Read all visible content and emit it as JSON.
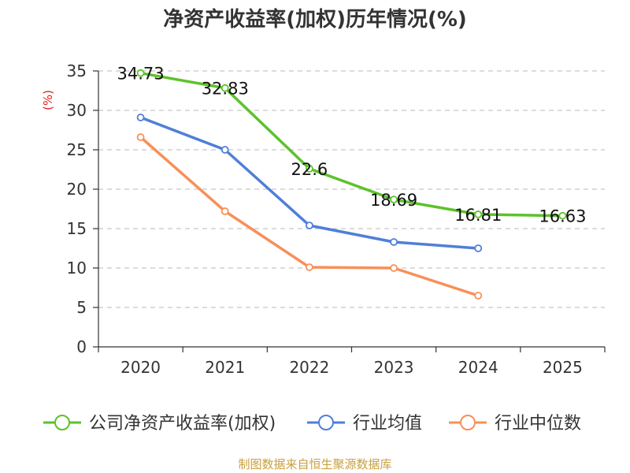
{
  "chart_data": {
    "type": "line",
    "title": "净资产收益率(加权)历年情况(%)",
    "ylabel": "(%)",
    "xlabel": "",
    "categories": [
      "2020",
      "2021",
      "2022",
      "2023",
      "2024",
      "2025"
    ],
    "ylim": [
      0,
      35
    ],
    "yticks": [
      0,
      5,
      10,
      15,
      20,
      25,
      30,
      35
    ],
    "grid": true,
    "legend_position": "bottom",
    "series": [
      {
        "name": "公司净资产收益率(加权)",
        "color": "#5cc22b",
        "values": [
          34.73,
          32.83,
          22.6,
          18.69,
          16.81,
          16.63
        ],
        "labels": [
          "34.73",
          "32.83",
          "22.6",
          "18.69",
          "16.81",
          "16.63"
        ]
      },
      {
        "name": "行业均值",
        "color": "#4f7fd8",
        "values": [
          29.1,
          25.0,
          15.4,
          13.3,
          12.5,
          null
        ]
      },
      {
        "name": "行业中位数",
        "color": "#f7905a",
        "values": [
          26.6,
          17.2,
          10.1,
          10.0,
          6.5,
          null
        ]
      }
    ]
  },
  "source": "制图数据来自恒生聚源数据库"
}
